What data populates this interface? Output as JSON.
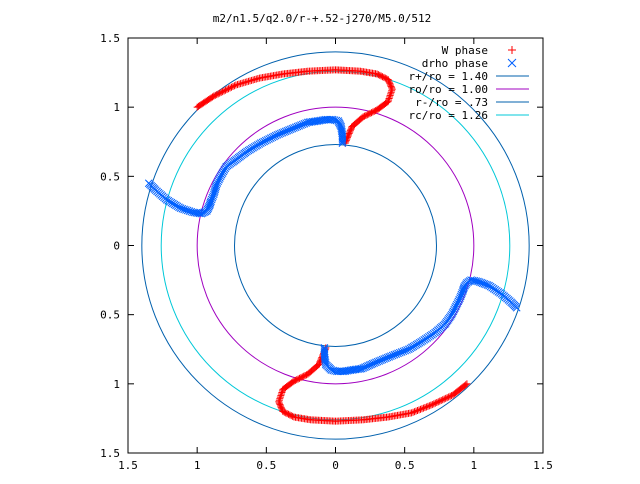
{
  "chart_data": {
    "type": "scatter",
    "title": "m2/n1.5/q2.0/r-+.52-j270/M5.0/512",
    "xlim": [
      -1.5,
      1.5
    ],
    "ylim": [
      -1.5,
      1.5
    ],
    "x_ticks": [
      -1.5,
      -1,
      -0.5,
      0,
      0.5,
      1,
      1.5
    ],
    "y_ticks": [
      1.5,
      1,
      0.5,
      0,
      -0.5,
      -1,
      -1.5
    ],
    "x_tick_labels": [
      "1.5",
      "1",
      "0.5",
      "0",
      "0.5",
      "1",
      "1.5"
    ],
    "y_tick_labels": [
      "1.5",
      "1",
      "0.5",
      "0",
      "0.5",
      "1",
      "1.5"
    ],
    "grid": false,
    "legend_position": "top-right",
    "series": [
      {
        "name": "W phase",
        "marker": "plus",
        "color": "#ff0000",
        "segments": [
          [
            [
              -1.0,
              1.0
            ],
            [
              -0.88,
              1.08
            ],
            [
              -0.72,
              1.16
            ],
            [
              -0.55,
              1.21
            ],
            [
              -0.38,
              1.24
            ],
            [
              -0.2,
              1.26
            ],
            [
              0.0,
              1.27
            ],
            [
              0.18,
              1.26
            ],
            [
              0.3,
              1.24
            ],
            [
              0.38,
              1.2
            ],
            [
              0.41,
              1.13
            ],
            [
              0.38,
              1.04
            ],
            [
              0.3,
              0.98
            ],
            [
              0.2,
              0.93
            ],
            [
              0.12,
              0.86
            ],
            [
              0.09,
              0.79
            ],
            [
              0.07,
              0.74
            ]
          ],
          [
            [
              0.95,
              -1.0
            ],
            [
              0.85,
              -1.08
            ],
            [
              0.7,
              -1.15
            ],
            [
              0.55,
              -1.21
            ],
            [
              0.38,
              -1.24
            ],
            [
              0.2,
              -1.26
            ],
            [
              0.0,
              -1.27
            ],
            [
              -0.18,
              -1.26
            ],
            [
              -0.3,
              -1.24
            ],
            [
              -0.38,
              -1.2
            ],
            [
              -0.41,
              -1.13
            ],
            [
              -0.38,
              -1.04
            ],
            [
              -0.3,
              -0.98
            ],
            [
              -0.2,
              -0.93
            ],
            [
              -0.12,
              -0.86
            ],
            [
              -0.09,
              -0.79
            ],
            [
              -0.07,
              -0.74
            ]
          ]
        ]
      },
      {
        "name": "drho phase",
        "marker": "cross",
        "color": "#0060ff",
        "segments": [
          [
            [
              -1.35,
              0.45
            ],
            [
              -1.3,
              0.4
            ],
            [
              -1.22,
              0.33
            ],
            [
              -1.12,
              0.27
            ],
            [
              -1.03,
              0.24
            ],
            [
              -0.97,
              0.23
            ],
            [
              -0.93,
              0.25
            ],
            [
              -0.91,
              0.29
            ],
            [
              -0.9,
              0.32
            ],
            [
              -0.88,
              0.37
            ],
            [
              -0.86,
              0.44
            ],
            [
              -0.83,
              0.5
            ],
            [
              -0.79,
              0.57
            ],
            [
              -0.72,
              0.62
            ],
            [
              -0.64,
              0.68
            ],
            [
              -0.54,
              0.74
            ],
            [
              -0.42,
              0.8
            ],
            [
              -0.3,
              0.85
            ],
            [
              -0.2,
              0.89
            ],
            [
              -0.13,
              0.9
            ],
            [
              -0.07,
              0.91
            ],
            [
              -0.02,
              0.91
            ],
            [
              0.02,
              0.9
            ],
            [
              0.04,
              0.86
            ],
            [
              0.05,
              0.8
            ],
            [
              0.05,
              0.74
            ]
          ],
          [
            [
              1.31,
              -0.45
            ],
            [
              1.27,
              -0.41
            ],
            [
              1.2,
              -0.35
            ],
            [
              1.11,
              -0.29
            ],
            [
              1.03,
              -0.26
            ],
            [
              0.98,
              -0.25
            ],
            [
              0.95,
              -0.27
            ],
            [
              0.93,
              -0.3
            ],
            [
              0.92,
              -0.33
            ],
            [
              0.9,
              -0.38
            ],
            [
              0.87,
              -0.44
            ],
            [
              0.84,
              -0.5
            ],
            [
              0.79,
              -0.57
            ],
            [
              0.72,
              -0.63
            ],
            [
              0.63,
              -0.69
            ],
            [
              0.53,
              -0.75
            ],
            [
              0.4,
              -0.8
            ],
            [
              0.28,
              -0.85
            ],
            [
              0.19,
              -0.89
            ],
            [
              0.12,
              -0.9
            ],
            [
              0.06,
              -0.91
            ],
            [
              0.01,
              -0.91
            ],
            [
              -0.03,
              -0.9
            ],
            [
              -0.07,
              -0.86
            ],
            [
              -0.08,
              -0.8
            ],
            [
              -0.08,
              -0.74
            ]
          ]
        ]
      },
      {
        "name": "r+/ro = 1.40",
        "type": "circle",
        "radius": 1.4,
        "color": "#0060ad"
      },
      {
        "name": "ro/ro = 1.00",
        "type": "circle",
        "radius": 1.0,
        "color": "#a000c0"
      },
      {
        "name": "r-/ro = .73",
        "type": "circle",
        "radius": 0.73,
        "color": "#0060ad"
      },
      {
        "name": "rc/ro = 1.26",
        "type": "circle",
        "radius": 1.26,
        "color": "#00c8d8"
      }
    ]
  }
}
